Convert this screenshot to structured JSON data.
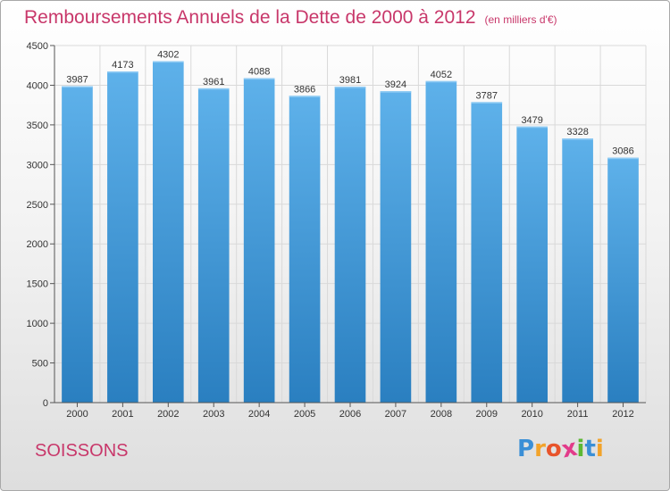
{
  "chart_data": {
    "type": "bar",
    "title": "Remboursements Annuels de la Dette de 2000 à 2012",
    "unit_note": "(en milliers d'€)",
    "categories": [
      "2000",
      "2001",
      "2002",
      "2003",
      "2004",
      "2005",
      "2006",
      "2007",
      "2008",
      "2009",
      "2010",
      "2011",
      "2012"
    ],
    "values": [
      3987,
      4173,
      4302,
      3961,
      4088,
      3866,
      3981,
      3924,
      4052,
      3787,
      3479,
      3328,
      3086
    ],
    "ylim": [
      0,
      4500
    ],
    "yticks": [
      0,
      500,
      1000,
      1500,
      2000,
      2500,
      3000,
      3500,
      4000,
      4500
    ],
    "grid": true,
    "xlabel": "",
    "ylabel": "",
    "bar_color_top": "#5eb1ea",
    "bar_color_bottom": "#2a7fc0"
  },
  "footer": {
    "city": "SOISSONS",
    "logo_letters": [
      "P",
      "r",
      "o",
      "x",
      "i",
      "t",
      "i"
    ],
    "logo_colors": [
      "#3a8fd6",
      "#f2a32a",
      "#e8542b",
      "#e23b8a",
      "#5cb833",
      "#3a8fd6",
      "#f2a32a"
    ]
  },
  "colors": {
    "title": "#c8376a",
    "axis": "#555555",
    "grid": "#d9d9d9"
  }
}
